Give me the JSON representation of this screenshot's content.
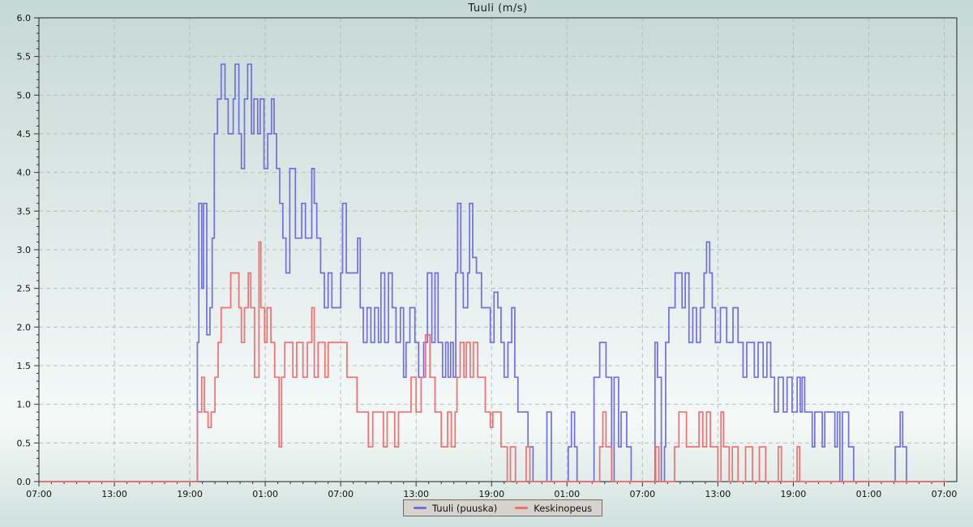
{
  "chart_data": {
    "type": "line",
    "subtype": "step",
    "title": "Tuuli (m/s)",
    "x_axis": {
      "unit": "time",
      "range_hours": [
        0,
        73
      ],
      "major_tick_interval_hours": 6,
      "minor_tick_interval_hours": 1,
      "labels": [
        "07:00",
        "13:00",
        "19:00",
        "01:00",
        "07:00",
        "13:00",
        "19:00",
        "01:00",
        "07:00",
        "13:00",
        "19:00",
        "01:00",
        "07:00"
      ]
    },
    "y_axis": {
      "min": 0,
      "max": 6,
      "tick_step": 0.5,
      "minor_step": 0.1,
      "labels": [
        "0.0",
        "0.5",
        "1.0",
        "1.5",
        "2.0",
        "2.5",
        "3.0",
        "3.5",
        "4.0",
        "4.5",
        "5.0",
        "5.5",
        "6.0"
      ]
    },
    "grid": {
      "style": "dashed",
      "color": "#b4bfbc"
    },
    "frame_color": "#4d4d4d",
    "legend": {
      "position": "bottom-center"
    },
    "series": [
      {
        "name": "Tuuli (puuska)",
        "color": "#6f6fe0",
        "points": [
          [
            0.05,
            0
          ],
          [
            12.6,
            1.8
          ],
          [
            12.72,
            3.6
          ],
          [
            12.95,
            2.5
          ],
          [
            13.1,
            3.6
          ],
          [
            13.35,
            1.9
          ],
          [
            13.6,
            2.25
          ],
          [
            13.78,
            3.15
          ],
          [
            13.95,
            4.5
          ],
          [
            14.2,
            4.95
          ],
          [
            14.5,
            5.4
          ],
          [
            14.8,
            4.95
          ],
          [
            15.05,
            4.5
          ],
          [
            15.45,
            4.95
          ],
          [
            15.6,
            5.4
          ],
          [
            15.9,
            4.5
          ],
          [
            16.1,
            4.05
          ],
          [
            16.35,
            4.95
          ],
          [
            16.6,
            5.4
          ],
          [
            16.9,
            4.5
          ],
          [
            17.1,
            4.95
          ],
          [
            17.4,
            4.5
          ],
          [
            17.6,
            4.95
          ],
          [
            17.9,
            4.05
          ],
          [
            18.2,
            4.5
          ],
          [
            18.5,
            4.95
          ],
          [
            18.7,
            4.5
          ],
          [
            18.9,
            4.05
          ],
          [
            19.15,
            3.6
          ],
          [
            19.4,
            3.15
          ],
          [
            19.65,
            2.7
          ],
          [
            19.95,
            4.05
          ],
          [
            20.4,
            3.15
          ],
          [
            20.9,
            3.6
          ],
          [
            21.2,
            3.15
          ],
          [
            21.7,
            4.05
          ],
          [
            21.9,
            3.6
          ],
          [
            22.1,
            3.15
          ],
          [
            22.4,
            2.7
          ],
          [
            22.7,
            2.25
          ],
          [
            23.0,
            2.7
          ],
          [
            23.3,
            2.25
          ],
          [
            24.0,
            2.7
          ],
          [
            24.15,
            3.6
          ],
          [
            24.45,
            2.7
          ],
          [
            25.35,
            3.15
          ],
          [
            25.55,
            2.25
          ],
          [
            25.8,
            1.8
          ],
          [
            26.1,
            2.25
          ],
          [
            26.4,
            1.8
          ],
          [
            26.7,
            2.25
          ],
          [
            27.0,
            1.8
          ],
          [
            27.2,
            2.7
          ],
          [
            27.5,
            1.8
          ],
          [
            27.8,
            2.7
          ],
          [
            28.1,
            2.25
          ],
          [
            28.4,
            1.8
          ],
          [
            28.75,
            2.25
          ],
          [
            29.0,
            1.35
          ],
          [
            29.2,
            1.8
          ],
          [
            29.5,
            2.25
          ],
          [
            29.9,
            1.8
          ],
          [
            30.2,
            1.35
          ],
          [
            30.6,
            1.8
          ],
          [
            30.9,
            2.7
          ],
          [
            31.25,
            1.8
          ],
          [
            31.5,
            2.7
          ],
          [
            31.75,
            1.8
          ],
          [
            32.1,
            1.35
          ],
          [
            32.35,
            1.8
          ],
          [
            32.55,
            1.35
          ],
          [
            32.75,
            1.8
          ],
          [
            32.95,
            1.35
          ],
          [
            33.15,
            2.7
          ],
          [
            33.3,
            3.6
          ],
          [
            33.55,
            2.7
          ],
          [
            33.75,
            2.25
          ],
          [
            34.1,
            2.7
          ],
          [
            34.25,
            3.6
          ],
          [
            34.5,
            2.9
          ],
          [
            34.8,
            2.7
          ],
          [
            35.2,
            2.25
          ],
          [
            35.9,
            1.8
          ],
          [
            36.2,
            2.45
          ],
          [
            36.5,
            2.25
          ],
          [
            36.75,
            1.8
          ],
          [
            37.0,
            1.35
          ],
          [
            37.3,
            1.8
          ],
          [
            37.6,
            2.25
          ],
          [
            37.85,
            1.35
          ],
          [
            38.1,
            0.9
          ],
          [
            38.9,
            0.45
          ],
          [
            39.3,
            0
          ],
          [
            40.4,
            0.9
          ],
          [
            40.75,
            0
          ],
          [
            42.1,
            0.45
          ],
          [
            42.35,
            0.9
          ],
          [
            42.6,
            0.45
          ],
          [
            42.8,
            0
          ],
          [
            44.15,
            1.35
          ],
          [
            44.6,
            1.8
          ],
          [
            45.1,
            1.35
          ],
          [
            45.55,
            0
          ],
          [
            45.75,
            1.35
          ],
          [
            46.1,
            0.45
          ],
          [
            46.3,
            0.9
          ],
          [
            46.75,
            0.45
          ],
          [
            47.1,
            0
          ],
          [
            49.0,
            1.8
          ],
          [
            49.2,
            1.35
          ],
          [
            49.5,
            0
          ],
          [
            49.75,
            0.45
          ],
          [
            49.85,
            1.8
          ],
          [
            50.1,
            2.25
          ],
          [
            50.6,
            2.7
          ],
          [
            51.15,
            2.25
          ],
          [
            51.4,
            2.7
          ],
          [
            51.7,
            1.8
          ],
          [
            52.0,
            2.25
          ],
          [
            52.3,
            1.8
          ],
          [
            52.6,
            2.25
          ],
          [
            52.9,
            2.7
          ],
          [
            53.1,
            3.1
          ],
          [
            53.35,
            2.7
          ],
          [
            53.55,
            2.25
          ],
          [
            53.8,
            1.8
          ],
          [
            54.2,
            2.25
          ],
          [
            54.7,
            1.8
          ],
          [
            55.2,
            2.25
          ],
          [
            55.6,
            1.8
          ],
          [
            56.0,
            1.35
          ],
          [
            56.3,
            1.8
          ],
          [
            56.9,
            1.35
          ],
          [
            57.2,
            1.8
          ],
          [
            57.6,
            1.35
          ],
          [
            57.9,
            1.8
          ],
          [
            58.2,
            1.35
          ],
          [
            58.5,
            0.9
          ],
          [
            58.8,
            1.35
          ],
          [
            59.2,
            0.9
          ],
          [
            59.5,
            1.35
          ],
          [
            59.9,
            0.9
          ],
          [
            60.3,
            1.35
          ],
          [
            60.55,
            0.9
          ],
          [
            60.7,
            1.35
          ],
          [
            60.9,
            0.9
          ],
          [
            61.5,
            0.45
          ],
          [
            61.7,
            0.9
          ],
          [
            62.3,
            0.45
          ],
          [
            62.5,
            0.9
          ],
          [
            63.3,
            0.45
          ],
          [
            63.5,
            0.9
          ],
          [
            63.7,
            0
          ],
          [
            63.9,
            0.9
          ],
          [
            64.4,
            0.45
          ],
          [
            64.8,
            0
          ],
          [
            68.1,
            0.45
          ],
          [
            68.5,
            0.9
          ],
          [
            68.7,
            0.45
          ],
          [
            69.0,
            0
          ],
          [
            72.2,
            0
          ]
        ]
      },
      {
        "name": "Keskinopeus",
        "color": "#f56d6d",
        "points": [
          [
            0.05,
            0
          ],
          [
            12.6,
            0.9
          ],
          [
            12.95,
            1.35
          ],
          [
            13.15,
            0.9
          ],
          [
            13.45,
            0.7
          ],
          [
            13.7,
            0.9
          ],
          [
            14.0,
            1.35
          ],
          [
            14.25,
            1.8
          ],
          [
            14.5,
            2.25
          ],
          [
            15.25,
            2.7
          ],
          [
            15.9,
            2.25
          ],
          [
            16.1,
            1.8
          ],
          [
            16.35,
            2.25
          ],
          [
            16.65,
            2.7
          ],
          [
            16.85,
            2.25
          ],
          [
            17.15,
            1.35
          ],
          [
            17.5,
            3.1
          ],
          [
            17.65,
            2.25
          ],
          [
            17.95,
            1.8
          ],
          [
            18.15,
            2.25
          ],
          [
            18.45,
            1.8
          ],
          [
            18.75,
            1.35
          ],
          [
            19.1,
            0.45
          ],
          [
            19.3,
            1.35
          ],
          [
            19.55,
            1.8
          ],
          [
            20.2,
            1.35
          ],
          [
            20.5,
            1.8
          ],
          [
            21.0,
            1.35
          ],
          [
            21.35,
            1.8
          ],
          [
            21.7,
            2.25
          ],
          [
            21.9,
            1.35
          ],
          [
            22.2,
            1.8
          ],
          [
            22.75,
            1.35
          ],
          [
            23.0,
            1.8
          ],
          [
            24.5,
            1.35
          ],
          [
            25.3,
            0.9
          ],
          [
            26.2,
            0.45
          ],
          [
            26.55,
            0.9
          ],
          [
            27.4,
            0.45
          ],
          [
            27.7,
            0.9
          ],
          [
            28.3,
            0.45
          ],
          [
            28.6,
            0.9
          ],
          [
            29.6,
            1.35
          ],
          [
            30.0,
            0.9
          ],
          [
            30.4,
            1.35
          ],
          [
            30.75,
            1.9
          ],
          [
            31.1,
            1.35
          ],
          [
            31.5,
            0.9
          ],
          [
            32.0,
            0.45
          ],
          [
            32.5,
            0.9
          ],
          [
            32.8,
            0.45
          ],
          [
            33.1,
            0.9
          ],
          [
            33.25,
            1.35
          ],
          [
            33.5,
            1.8
          ],
          [
            33.8,
            1.35
          ],
          [
            34.0,
            1.8
          ],
          [
            34.3,
            1.35
          ],
          [
            34.55,
            1.8
          ],
          [
            34.9,
            1.35
          ],
          [
            35.5,
            0.9
          ],
          [
            35.9,
            0.7
          ],
          [
            36.1,
            0.9
          ],
          [
            36.75,
            0.45
          ],
          [
            37.25,
            0
          ],
          [
            37.5,
            0.45
          ],
          [
            37.9,
            0
          ],
          [
            38.75,
            0.45
          ],
          [
            39.05,
            0
          ],
          [
            44.6,
            0.45
          ],
          [
            44.85,
            0.9
          ],
          [
            45.1,
            0.45
          ],
          [
            45.55,
            0
          ],
          [
            49.05,
            0.45
          ],
          [
            49.3,
            0
          ],
          [
            50.55,
            0.45
          ],
          [
            50.9,
            0.9
          ],
          [
            51.5,
            0.45
          ],
          [
            52.5,
            0.9
          ],
          [
            52.8,
            0.45
          ],
          [
            53.1,
            0.9
          ],
          [
            53.4,
            0.45
          ],
          [
            54.0,
            0
          ],
          [
            54.25,
            0.9
          ],
          [
            54.45,
            0.45
          ],
          [
            54.9,
            0
          ],
          [
            55.15,
            0.45
          ],
          [
            55.6,
            0
          ],
          [
            56.2,
            0.45
          ],
          [
            56.75,
            0
          ],
          [
            57.3,
            0.45
          ],
          [
            57.8,
            0
          ],
          [
            58.8,
            0.45
          ],
          [
            59.05,
            0
          ],
          [
            60.3,
            0.45
          ],
          [
            60.5,
            0
          ],
          [
            72.2,
            0
          ]
        ]
      }
    ]
  }
}
